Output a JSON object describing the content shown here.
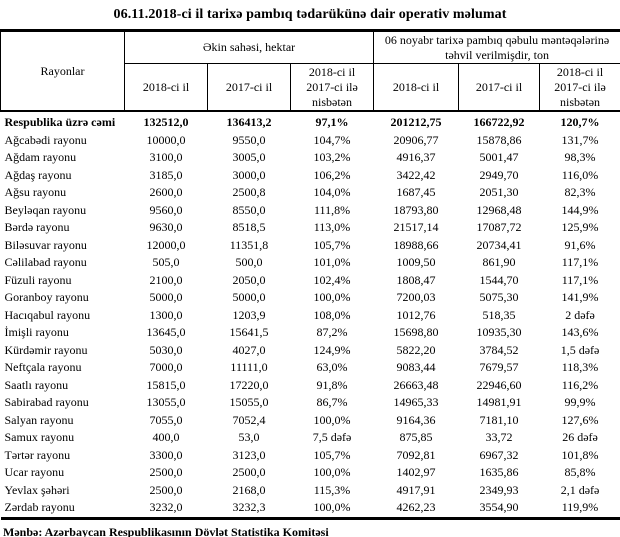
{
  "title": "06.11.2018-ci il tarixə pambıq tədarükünə dair operativ məlumat",
  "table": {
    "row_header": "Rayonlar",
    "groups": [
      {
        "label": "Əkin sahəsi, hektar"
      },
      {
        "label": "06 noyabr tarixə pambıq qəbulu məntəqələrinə təhvil verilmişdir, ton"
      }
    ],
    "subheaders": [
      "2018-ci il",
      "2017-ci il",
      "2018-ci il\n2017-ci ilə\nnisbətən",
      "2018-ci il",
      "2017-ci il",
      "2018-ci il\n2017-ci ilə\nnisbətən"
    ],
    "rows": [
      {
        "name": "Respublika üzrə cəmi",
        "bold": true,
        "values": [
          "132512,0",
          "136413,2",
          "97,1%",
          "201212,75",
          "166722,92",
          "120,7%"
        ]
      },
      {
        "name": "Ağcabədi rayonu",
        "bold": false,
        "values": [
          "10000,0",
          "9550,0",
          "104,7%",
          "20906,77",
          "15878,86",
          "131,7%"
        ]
      },
      {
        "name": "Ağdam rayonu",
        "bold": false,
        "values": [
          "3100,0",
          "3005,0",
          "103,2%",
          "4916,37",
          "5001,47",
          "98,3%"
        ]
      },
      {
        "name": "Ağdaş rayonu",
        "bold": false,
        "values": [
          "3185,0",
          "3000,0",
          "106,2%",
          "3422,42",
          "2949,70",
          "116,0%"
        ]
      },
      {
        "name": "Ağsu rayonu",
        "bold": false,
        "values": [
          "2600,0",
          "2500,8",
          "104,0%",
          "1687,45",
          "2051,30",
          "82,3%"
        ]
      },
      {
        "name": "Beyləqan rayonu",
        "bold": false,
        "values": [
          "9560,0",
          "8550,0",
          "111,8%",
          "18793,80",
          "12968,48",
          "144,9%"
        ]
      },
      {
        "name": "Bərdə rayonu",
        "bold": false,
        "values": [
          "9630,0",
          "8518,5",
          "113,0%",
          "21517,14",
          "17087,72",
          "125,9%"
        ]
      },
      {
        "name": "Biləsuvar rayonu",
        "bold": false,
        "values": [
          "12000,0",
          "11351,8",
          "105,7%",
          "18988,66",
          "20734,41",
          "91,6%"
        ]
      },
      {
        "name": "Cəlilabad rayonu",
        "bold": false,
        "values": [
          "505,0",
          "500,0",
          "101,0%",
          "1009,50",
          "861,90",
          "117,1%"
        ]
      },
      {
        "name": "Füzuli rayonu",
        "bold": false,
        "values": [
          "2100,0",
          "2050,0",
          "102,4%",
          "1808,47",
          "1544,70",
          "117,1%"
        ]
      },
      {
        "name": "Goranboy rayonu",
        "bold": false,
        "values": [
          "5000,0",
          "5000,0",
          "100,0%",
          "7200,03",
          "5075,30",
          "141,9%"
        ]
      },
      {
        "name": "Hacıqabul rayonu",
        "bold": false,
        "values": [
          "1300,0",
          "1203,9",
          "108,0%",
          "1012,76",
          "518,35",
          "2 dəfə"
        ]
      },
      {
        "name": "İmişli rayonu",
        "bold": false,
        "values": [
          "13645,0",
          "15641,5",
          "87,2%",
          "15698,80",
          "10935,30",
          "143,6%"
        ]
      },
      {
        "name": "Kürdəmir rayonu",
        "bold": false,
        "values": [
          "5030,0",
          "4027,0",
          "124,9%",
          "5822,20",
          "3784,52",
          "1,5 dəfə"
        ]
      },
      {
        "name": "Neftçala rayonu",
        "bold": false,
        "values": [
          "7000,0",
          "11111,0",
          "63,0%",
          "9083,44",
          "7679,57",
          "118,3%"
        ]
      },
      {
        "name": "Saatlı rayonu",
        "bold": false,
        "values": [
          "15815,0",
          "17220,0",
          "91,8%",
          "26663,48",
          "22946,60",
          "116,2%"
        ]
      },
      {
        "name": "Sabirabad rayonu",
        "bold": false,
        "values": [
          "13055,0",
          "15055,0",
          "86,7%",
          "14965,33",
          "14981,91",
          "99,9%"
        ]
      },
      {
        "name": "Salyan rayonu",
        "bold": false,
        "values": [
          "7055,0",
          "7052,4",
          "100,0%",
          "9164,36",
          "7181,10",
          "127,6%"
        ]
      },
      {
        "name": "Samux rayonu",
        "bold": false,
        "values": [
          "400,0",
          "53,0",
          "7,5 dəfə",
          "875,85",
          "33,72",
          "26 dəfə"
        ]
      },
      {
        "name": "Tərtər rayonu",
        "bold": false,
        "values": [
          "3300,0",
          "3123,0",
          "105,7%",
          "7092,81",
          "6967,32",
          "101,8%"
        ]
      },
      {
        "name": "Ucar rayonu",
        "bold": false,
        "values": [
          "2500,0",
          "2500,0",
          "100,0%",
          "1402,97",
          "1635,86",
          "85,8%"
        ]
      },
      {
        "name": "Yevlax şəhəri",
        "bold": false,
        "values": [
          "2500,0",
          "2168,0",
          "115,3%",
          "4917,91",
          "2349,93",
          "2,1 dəfə"
        ]
      },
      {
        "name": "Zərdab rayonu",
        "bold": false,
        "values": [
          "3232,0",
          "3232,3",
          "100,0%",
          "4262,23",
          "3554,90",
          "119,9%"
        ]
      }
    ]
  },
  "footer": {
    "source": "Mənbə: Azərbaycan Respublikasının Dövlət Statistika Komitəsi"
  }
}
